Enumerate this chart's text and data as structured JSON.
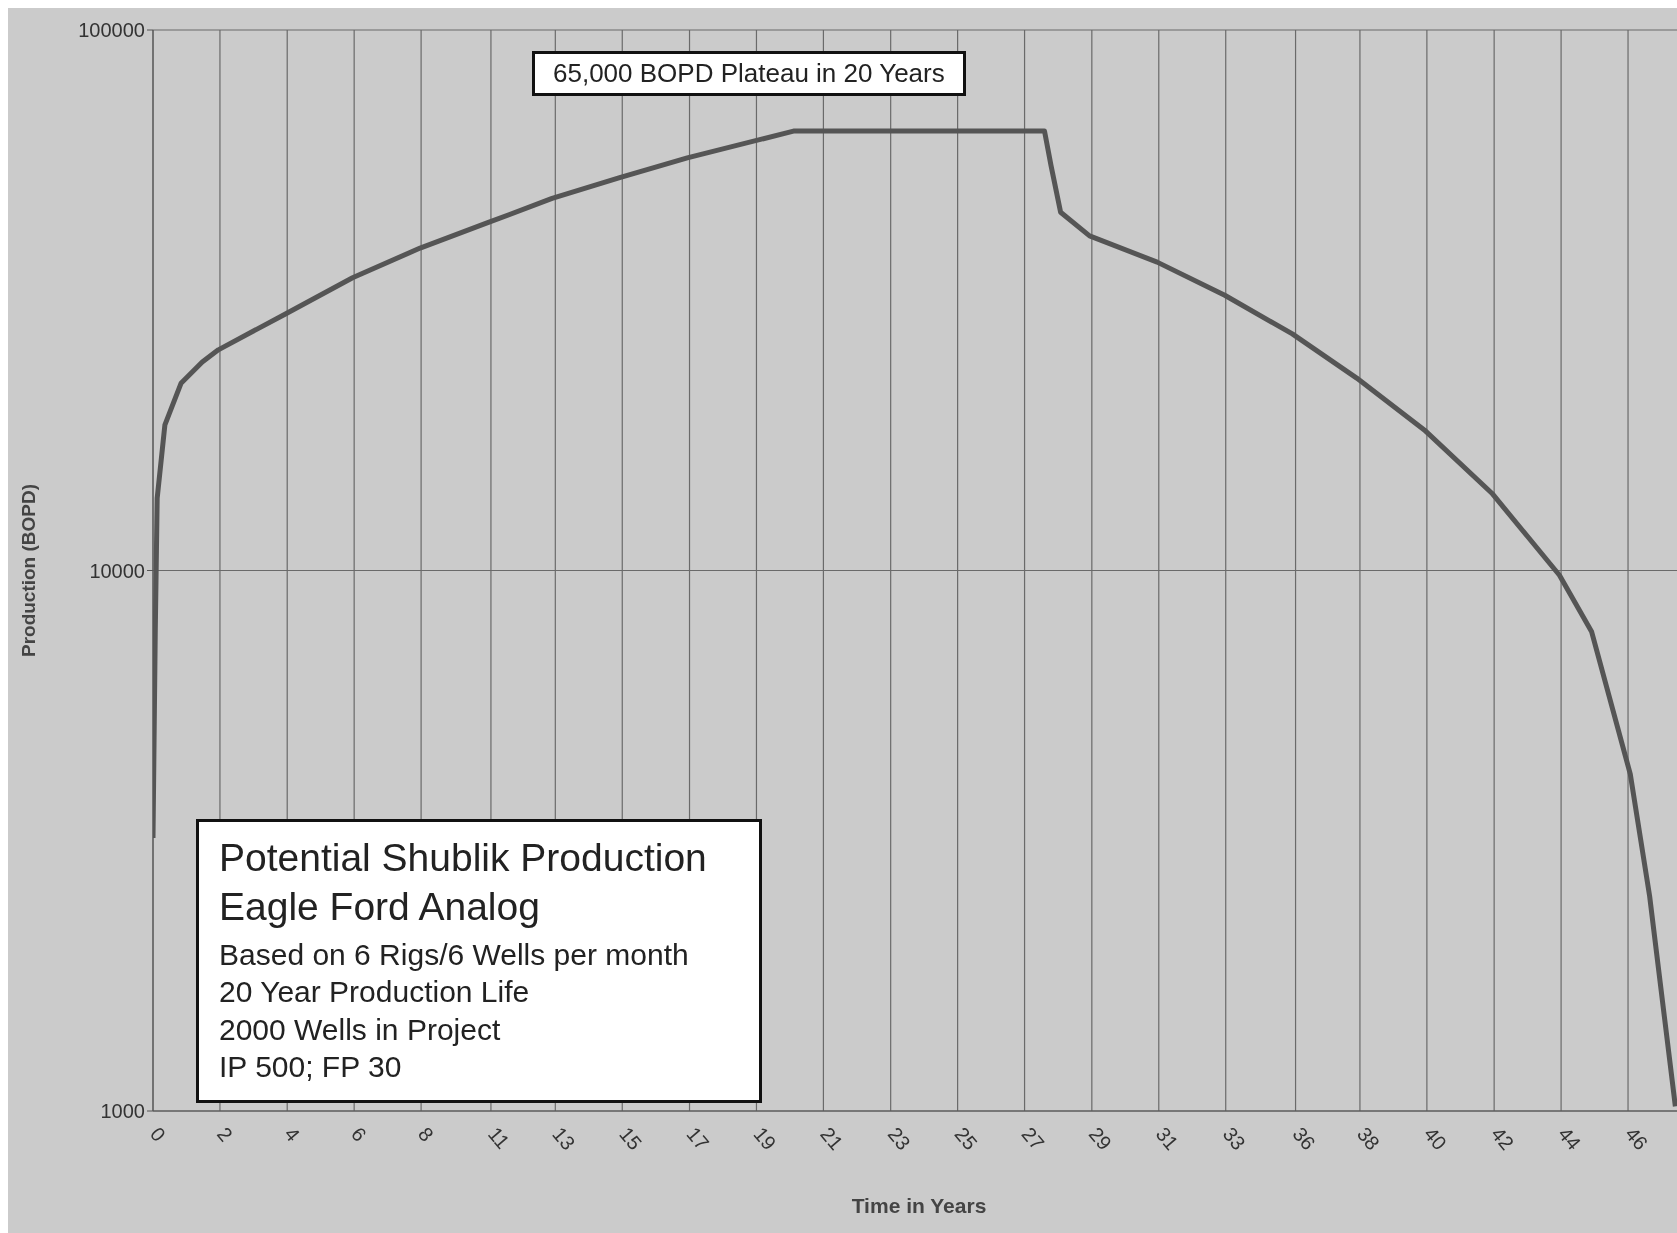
{
  "chart_data": {
    "type": "line",
    "title": "Potential Shublik Production",
    "subtitle": "Eagle Ford Analog",
    "xlabel": "Time in Years",
    "ylabel": "Production (BOPD)",
    "annotations": [
      "65,000 BOPD Plateau in 20 Years",
      "Based on 6 Rigs/6 Wells per month",
      "20 Year Production Life",
      "2000 Wells in Project",
      "IP 500; FP 30"
    ],
    "x": [
      0,
      0.07,
      0.13,
      0.37,
      0.87,
      1.53,
      2.03,
      4.1,
      6.2,
      8.3,
      10.4,
      12.4,
      14.5,
      16.6,
      19.9,
      27.7,
      27.9,
      28.2,
      29.1,
      31.2,
      33.3,
      35.4,
      37.4,
      39.5,
      41.6,
      43.7,
      44.7,
      45.9,
      46.5,
      47.3
    ],
    "series": [
      {
        "color": "#555555",
        "values": [
          3200,
          7700,
          13600,
          18600,
          22200,
          24300,
          25600,
          29800,
          34800,
          39500,
          44000,
          48800,
          53300,
          58000,
          65000,
          65000,
          56200,
          46000,
          41600,
          37200,
          32300,
          27400,
          22700,
          18200,
          13900,
          9800,
          7700,
          4200,
          2500,
          1020
        ]
      }
    ],
    "log": "y",
    "xlim": [
      0,
      47.6
    ],
    "ylim": [
      1000,
      100000
    ],
    "yticks": [
      1000,
      10000,
      100000
    ],
    "xticks": [
      {
        "value": 0,
        "label": "0"
      },
      {
        "value": 2.08,
        "label": "2"
      },
      {
        "value": 4.17,
        "label": "4"
      },
      {
        "value": 6.25,
        "label": "6"
      },
      {
        "value": 8.33,
        "label": "8"
      },
      {
        "value": 10.5,
        "label": "11"
      },
      {
        "value": 12.5,
        "label": "13"
      },
      {
        "value": 14.58,
        "label": "15"
      },
      {
        "value": 16.67,
        "label": "17"
      },
      {
        "value": 18.75,
        "label": "19"
      },
      {
        "value": 20.83,
        "label": "21"
      },
      {
        "value": 22.92,
        "label": "23"
      },
      {
        "value": 25,
        "label": "25"
      },
      {
        "value": 27.08,
        "label": "27"
      },
      {
        "value": 29.17,
        "label": "29"
      },
      {
        "value": 31.25,
        "label": "31"
      },
      {
        "value": 33.33,
        "label": "33"
      },
      {
        "value": 35.5,
        "label": "36"
      },
      {
        "value": 37.5,
        "label": "38"
      },
      {
        "value": 39.58,
        "label": "40"
      },
      {
        "value": 41.67,
        "label": "42"
      },
      {
        "value": 43.75,
        "label": "44"
      },
      {
        "value": 45.83,
        "label": "46"
      }
    ],
    "grid": true,
    "legend": false,
    "marker": "none",
    "line_style": "solid"
  }
}
